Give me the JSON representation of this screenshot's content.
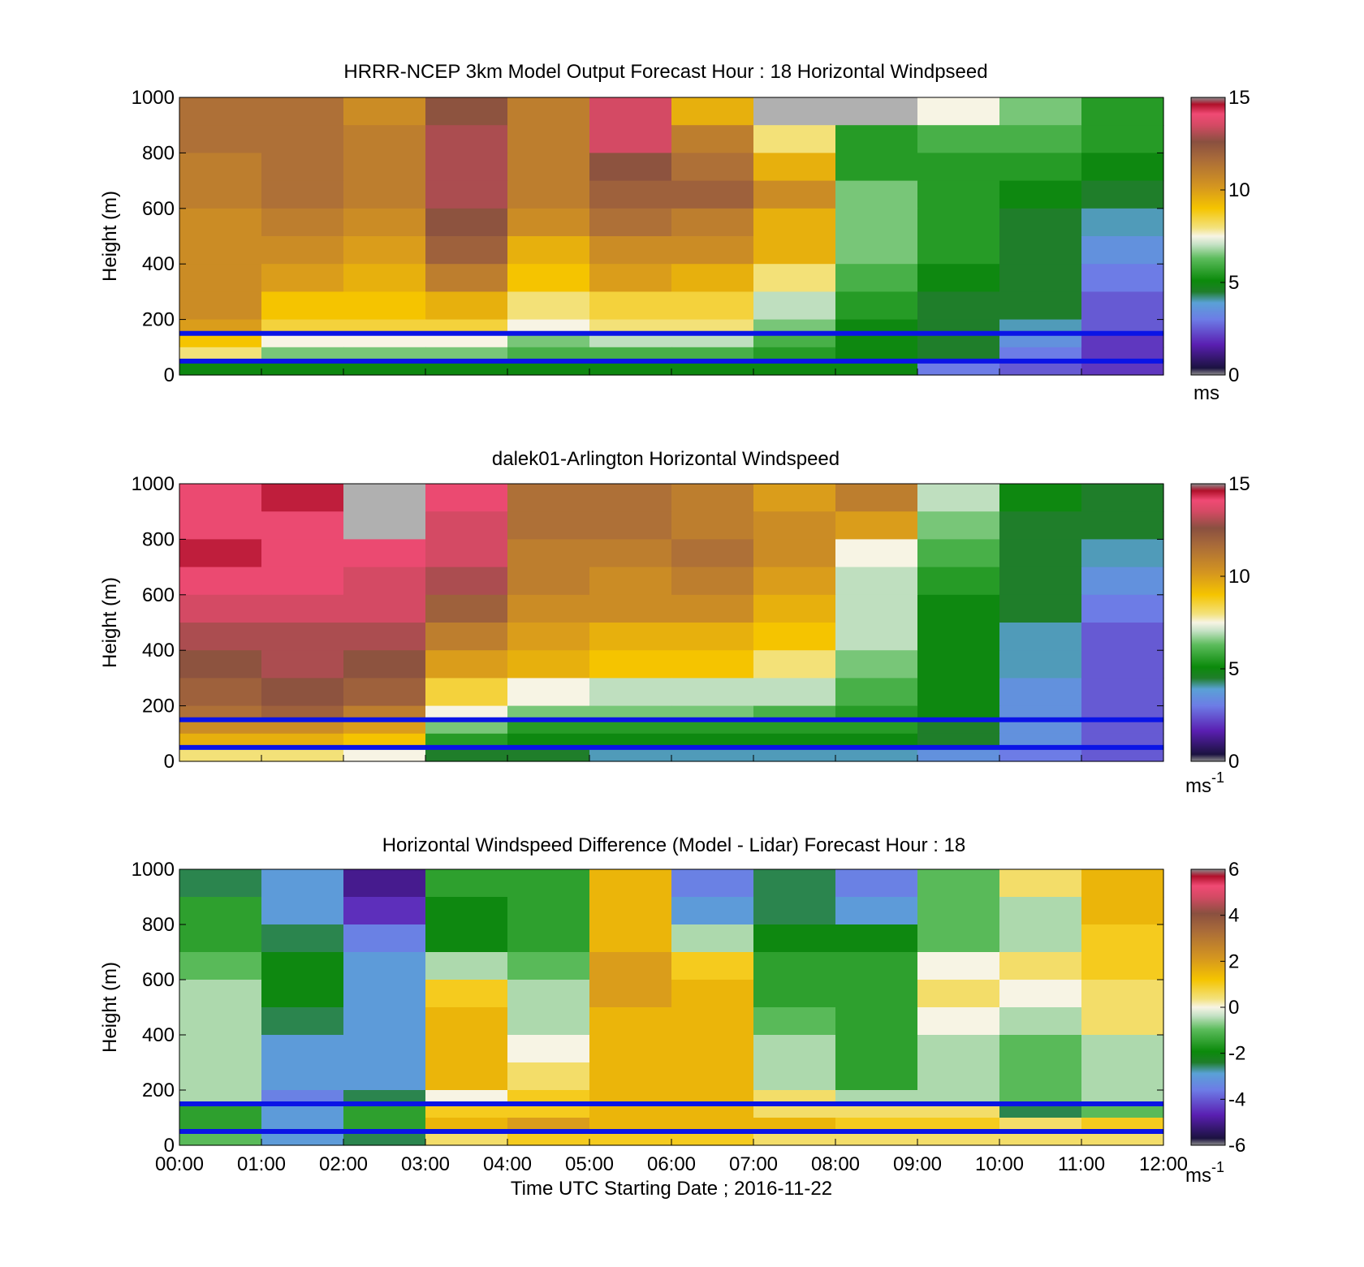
{
  "figure": {
    "xlabel": "Time UTC  Starting Date ; 2016-11-22"
  },
  "chart_data": [
    {
      "type": "heatmap",
      "title": "HRRR-NCEP 3km Model Output   Forecast Hour : 18 Horizontal Windpseed",
      "ylabel": "Height (m)",
      "ylim": [
        0,
        1000
      ],
      "yticks": [
        "0",
        "200",
        "400",
        "600",
        "800",
        "1000"
      ],
      "xlim": [
        0,
        12
      ],
      "x_tick_labels_shown": false,
      "colorbar": {
        "range": [
          0,
          15
        ],
        "ticks": [
          "0",
          "5",
          "10",
          "15"
        ],
        "unit": "ms",
        "unit_sup": ""
      },
      "hlines": [
        150,
        50
      ],
      "columns": 12,
      "rows": [
        {
          "y": [
            900,
            1000
          ],
          "v": [
            11.5,
            11.5,
            10.5,
            12.5,
            11.0,
            13.5,
            9.5,
            15.5,
            15.5,
            7.5,
            6.5,
            5.5
          ]
        },
        {
          "y": [
            800,
            900
          ],
          "v": [
            11.5,
            11.5,
            11.0,
            13.0,
            11.0,
            13.5,
            11.0,
            8.0,
            5.5,
            6.0,
            6.0,
            5.5
          ]
        },
        {
          "y": [
            700,
            800
          ],
          "v": [
            11.0,
            11.5,
            11.0,
            13.0,
            11.0,
            12.5,
            11.5,
            9.5,
            5.5,
            5.5,
            5.5,
            5.0
          ]
        },
        {
          "y": [
            600,
            700
          ],
          "v": [
            11.0,
            11.5,
            11.0,
            13.0,
            11.0,
            12.0,
            12.0,
            10.5,
            6.5,
            5.5,
            5.0,
            4.5
          ]
        },
        {
          "y": [
            500,
            600
          ],
          "v": [
            10.5,
            11.0,
            10.5,
            12.5,
            10.5,
            11.5,
            11.0,
            9.5,
            6.5,
            5.5,
            4.5,
            4.0
          ]
        },
        {
          "y": [
            400,
            500
          ],
          "v": [
            10.5,
            10.5,
            10.0,
            12.0,
            9.5,
            10.5,
            10.5,
            9.5,
            6.5,
            5.5,
            4.5,
            3.5
          ]
        },
        {
          "y": [
            300,
            400
          ],
          "v": [
            10.5,
            10.0,
            9.5,
            11.0,
            9.0,
            10.0,
            9.5,
            8.0,
            6.0,
            5.0,
            4.5,
            3.0
          ]
        },
        {
          "y": [
            200,
            300
          ],
          "v": [
            10.5,
            9.0,
            9.0,
            9.5,
            8.0,
            8.5,
            8.5,
            7.0,
            5.5,
            4.5,
            4.5,
            2.5
          ]
        },
        {
          "y": [
            150,
            200
          ],
          "v": [
            10.0,
            8.5,
            8.5,
            8.5,
            7.5,
            8.0,
            8.0,
            6.5,
            5.0,
            4.5,
            4.0,
            2.5
          ]
        },
        {
          "y": [
            100,
            150
          ],
          "v": [
            9.0,
            7.5,
            7.5,
            7.5,
            6.5,
            7.0,
            7.0,
            6.0,
            5.0,
            4.5,
            3.5,
            2.0
          ]
        },
        {
          "y": [
            50,
            100
          ],
          "v": [
            8.0,
            6.5,
            6.5,
            6.5,
            6.0,
            6.0,
            6.0,
            5.5,
            5.0,
            4.5,
            3.0,
            2.0
          ]
        },
        {
          "y": [
            0,
            50
          ],
          "v": [
            5.0,
            5.0,
            5.0,
            5.0,
            5.0,
            5.0,
            5.0,
            5.0,
            5.0,
            3.0,
            2.5,
            2.0
          ]
        }
      ]
    },
    {
      "type": "heatmap",
      "title": "dalek01-Arlington  Horizontal Windspeed",
      "ylabel": "Height (m)",
      "ylim": [
        0,
        1000
      ],
      "yticks": [
        "0",
        "200",
        "400",
        "600",
        "800",
        "1000"
      ],
      "xlim": [
        0,
        12
      ],
      "x_tick_labels_shown": false,
      "colorbar": {
        "range": [
          0,
          15
        ],
        "ticks": [
          "0",
          "5",
          "10",
          "15"
        ],
        "unit": "ms",
        "unit_sup": "-1"
      },
      "hlines": [
        150,
        50
      ],
      "columns": 12,
      "rows": [
        {
          "y": [
            900,
            1000
          ],
          "v": [
            14.0,
            14.5,
            15.5,
            14.0,
            11.5,
            11.5,
            11.0,
            10.0,
            11.0,
            7.0,
            5.0,
            4.5
          ]
        },
        {
          "y": [
            800,
            900
          ],
          "v": [
            14.0,
            14.0,
            15.5,
            13.5,
            11.5,
            11.5,
            11.0,
            10.5,
            10.0,
            6.5,
            4.5,
            4.5
          ]
        },
        {
          "y": [
            700,
            800
          ],
          "v": [
            14.5,
            14.0,
            14.0,
            13.5,
            11.0,
            11.0,
            11.5,
            10.5,
            7.5,
            6.0,
            4.5,
            4.0
          ]
        },
        {
          "y": [
            600,
            700
          ],
          "v": [
            14.0,
            14.0,
            13.5,
            13.0,
            11.0,
            10.5,
            11.0,
            10.0,
            7.0,
            5.5,
            4.5,
            3.5
          ]
        },
        {
          "y": [
            500,
            600
          ],
          "v": [
            13.5,
            13.5,
            13.5,
            12.0,
            10.5,
            10.5,
            10.5,
            9.5,
            7.0,
            5.0,
            4.5,
            3.0
          ]
        },
        {
          "y": [
            400,
            500
          ],
          "v": [
            13.0,
            13.0,
            13.0,
            11.0,
            10.0,
            9.5,
            9.5,
            9.0,
            7.0,
            5.0,
            4.0,
            2.5
          ]
        },
        {
          "y": [
            300,
            400
          ],
          "v": [
            12.5,
            13.0,
            12.5,
            10.0,
            9.5,
            9.0,
            9.0,
            8.0,
            6.5,
            5.0,
            4.0,
            2.5
          ]
        },
        {
          "y": [
            200,
            300
          ],
          "v": [
            12.0,
            12.5,
            12.0,
            8.5,
            7.5,
            7.0,
            7.0,
            7.0,
            6.0,
            5.0,
            3.5,
            2.5
          ]
        },
        {
          "y": [
            150,
            200
          ],
          "v": [
            11.5,
            12.0,
            11.0,
            7.5,
            6.5,
            6.5,
            6.5,
            6.0,
            5.5,
            5.0,
            3.5,
            2.5
          ]
        },
        {
          "y": [
            100,
            150
          ],
          "v": [
            10.5,
            10.5,
            10.0,
            6.5,
            5.5,
            5.5,
            5.5,
            5.5,
            5.5,
            4.5,
            3.5,
            2.5
          ]
        },
        {
          "y": [
            50,
            100
          ],
          "v": [
            9.5,
            9.5,
            9.0,
            5.5,
            5.0,
            5.0,
            5.0,
            5.0,
            5.0,
            4.5,
            3.5,
            2.5
          ]
        },
        {
          "y": [
            0,
            50
          ],
          "v": [
            8.0,
            8.0,
            7.5,
            4.5,
            4.5,
            4.0,
            4.0,
            4.0,
            4.0,
            3.5,
            3.0,
            2.5
          ]
        }
      ]
    },
    {
      "type": "heatmap",
      "title": "Horizontal Windspeed Difference (Model - Lidar) Forecast Hour : 18",
      "ylabel": "Height (m)",
      "ylim": [
        0,
        1000
      ],
      "yticks": [
        "0",
        "200",
        "400",
        "600",
        "800",
        "1000"
      ],
      "xlim": [
        0,
        12
      ],
      "x_tick_labels_shown": true,
      "xticks": [
        "00:00",
        "01:00",
        "02:00",
        "03:00",
        "04:00",
        "05:00",
        "06:00",
        "07:00",
        "08:00",
        "09:00",
        "10:00",
        "11:00",
        "12:00"
      ],
      "colorbar": {
        "range": [
          -6,
          6
        ],
        "ticks": [
          "-6",
          "-4",
          "-2",
          "0",
          "2",
          "4",
          "6"
        ],
        "unit": "ms",
        "unit_sup": "-1"
      },
      "hlines": [
        150,
        50
      ],
      "columns": 12,
      "rows": [
        {
          "y": [
            900,
            1000
          ],
          "v": [
            -2.5,
            -3.0,
            -5.0,
            -1.5,
            -1.5,
            1.5,
            -3.5,
            -2.5,
            -3.5,
            -1.0,
            0.5,
            1.5
          ]
        },
        {
          "y": [
            800,
            900
          ],
          "v": [
            -1.5,
            -3.0,
            -4.5,
            -2.0,
            -1.5,
            1.5,
            -3.0,
            -2.5,
            -3.0,
            -1.0,
            -0.5,
            1.5
          ]
        },
        {
          "y": [
            700,
            800
          ],
          "v": [
            -1.5,
            -2.5,
            -3.5,
            -2.0,
            -1.5,
            1.5,
            -0.5,
            -2.0,
            -2.0,
            -1.0,
            -0.5,
            1.0
          ]
        },
        {
          "y": [
            600,
            700
          ],
          "v": [
            -1.0,
            -2.0,
            -3.0,
            -0.5,
            -1.0,
            2.0,
            1.0,
            -1.5,
            -1.5,
            0.0,
            0.5,
            1.0
          ]
        },
        {
          "y": [
            500,
            600
          ],
          "v": [
            -0.5,
            -2.0,
            -3.0,
            1.0,
            -0.5,
            2.0,
            1.5,
            -1.5,
            -1.5,
            0.5,
            0.0,
            0.5
          ]
        },
        {
          "y": [
            400,
            500
          ],
          "v": [
            -0.5,
            -2.5,
            -3.0,
            1.5,
            -0.5,
            1.5,
            1.5,
            -1.0,
            -1.5,
            0.0,
            -0.5,
            0.5
          ]
        },
        {
          "y": [
            300,
            400
          ],
          "v": [
            -0.5,
            -3.0,
            -3.0,
            1.5,
            0.0,
            1.5,
            1.5,
            -0.5,
            -1.5,
            -0.5,
            -1.0,
            -0.5
          ]
        },
        {
          "y": [
            200,
            300
          ],
          "v": [
            -0.5,
            -3.0,
            -3.0,
            1.5,
            0.5,
            1.5,
            1.5,
            -0.5,
            -1.5,
            -0.5,
            -1.0,
            -0.5
          ]
        },
        {
          "y": [
            150,
            200
          ],
          "v": [
            -0.5,
            -3.5,
            -2.5,
            0.0,
            1.0,
            1.5,
            1.5,
            0.5,
            -0.5,
            -0.5,
            -1.0,
            -0.5
          ]
        },
        {
          "y": [
            100,
            150
          ],
          "v": [
            -1.5,
            -3.0,
            -1.5,
            1.0,
            1.0,
            1.5,
            1.5,
            0.5,
            0.5,
            0.5,
            -2.5,
            -1.0
          ]
        },
        {
          "y": [
            50,
            100
          ],
          "v": [
            -1.5,
            -3.0,
            -1.5,
            1.5,
            2.0,
            1.5,
            1.5,
            1.5,
            1.0,
            1.0,
            0.5,
            1.0
          ]
        },
        {
          "y": [
            0,
            50
          ],
          "v": [
            -1.0,
            -3.0,
            -2.5,
            0.5,
            1.0,
            1.0,
            1.0,
            0.5,
            0.5,
            0.5,
            0.5,
            0.5
          ]
        }
      ]
    }
  ]
}
